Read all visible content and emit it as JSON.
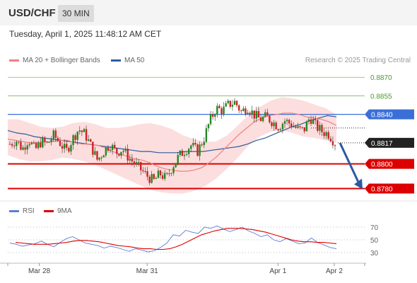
{
  "header": {
    "symbol": "USD/CHF",
    "timeframe": "30 MIN"
  },
  "timestamp": "Tuesday, April 1, 2025 11:48:12 AM CET",
  "legend": {
    "ma20": {
      "label": "MA 20 + Bollinger Bands",
      "color": "#f08080"
    },
    "ma50": {
      "label": "MA 50",
      "color": "#2e5c9e"
    }
  },
  "credit": "Research © 2025 Trading Central",
  "rsi_legend": {
    "rsi": {
      "label": "RSI",
      "color": "#5b7fd6"
    },
    "ma9": {
      "label": "9MA",
      "color": "#dd0000"
    }
  },
  "chart_data": [
    {
      "type": "candlestick",
      "ylim": [
        0.8774,
        0.8877
      ],
      "x_ticks": [
        {
          "label": "Mar 28",
          "pos": 0.0882
        },
        {
          "label": "Mar 31",
          "pos": 0.3905
        },
        {
          "label": "Apr 1",
          "pos": 0.7572
        },
        {
          "label": "Apr 2",
          "pos": 0.9148
        }
      ],
      "last_price": {
        "value": 0.8817,
        "label": "0.8817"
      },
      "levels": [
        {
          "value": 0.887,
          "label": "0.8870",
          "kind": "target"
        },
        {
          "value": 0.8855,
          "label": "0.8855",
          "kind": "target"
        },
        {
          "value": 0.884,
          "label": "0.8840",
          "kind": "pivot"
        },
        {
          "value": 0.88,
          "label": "0.8800",
          "kind": "support"
        },
        {
          "value": 0.878,
          "label": "0.8780",
          "kind": "support"
        }
      ],
      "forecast": {
        "from": 0.8817,
        "to": 0.878
      },
      "colors": {
        "up": "#228822",
        "down": "#cc2222",
        "target": "#4a9a2a",
        "pivot": "#3a6fd8",
        "support": "#dd0000",
        "forecast": "#2b5aa0"
      },
      "close_path": [
        0.8816,
        0.8819,
        0.8812,
        0.882,
        0.8811,
        0.8818,
        0.8816,
        0.8823,
        0.8817,
        0.881,
        0.882,
        0.8828,
        0.8824,
        0.8814,
        0.8803,
        0.881,
        0.8816,
        0.8809,
        0.8812,
        0.8805,
        0.88,
        0.8795,
        0.879,
        0.8786,
        0.8792,
        0.8788,
        0.8798,
        0.8806,
        0.8811,
        0.8815,
        0.881,
        0.882,
        0.8835,
        0.8845,
        0.8843,
        0.8848,
        0.885,
        0.8842,
        0.8846,
        0.884,
        0.8836,
        0.8838,
        0.8834,
        0.883,
        0.8835,
        0.8832,
        0.8828,
        0.8827,
        0.8838,
        0.883,
        0.8826,
        0.8824,
        0.8817
      ],
      "ma20": [
        0.882,
        0.8819,
        0.8818,
        0.8817,
        0.8817,
        0.8818,
        0.8818,
        0.8819,
        0.8819,
        0.8817,
        0.8816,
        0.8816,
        0.8815,
        0.8813,
        0.881,
        0.8808,
        0.8806,
        0.8804,
        0.8803,
        0.8801,
        0.8798,
        0.8796,
        0.8795,
        0.8794,
        0.8794,
        0.8795,
        0.8797,
        0.8801,
        0.8806,
        0.8812,
        0.8818,
        0.8824,
        0.8829,
        0.8834,
        0.8837,
        0.8839,
        0.884,
        0.8841,
        0.8841,
        0.884,
        0.8838,
        0.8837,
        0.8836,
        0.8834,
        0.8831
      ],
      "ma50": [
        0.8827,
        0.8825,
        0.8824,
        0.8822,
        0.8821,
        0.882,
        0.8819,
        0.8818,
        0.8817,
        0.8816,
        0.8815,
        0.8814,
        0.8813,
        0.8812,
        0.8811,
        0.881,
        0.881,
        0.8809,
        0.8809,
        0.8809,
        0.881,
        0.881,
        0.881,
        0.8811,
        0.8812,
        0.8813,
        0.8814,
        0.8816,
        0.8819,
        0.8821,
        0.8824,
        0.8827,
        0.883,
        0.8832,
        0.8835,
        0.8837,
        0.8839,
        0.8838
      ],
      "bb_upper": [
        0.8836,
        0.8836,
        0.8833,
        0.883,
        0.8829,
        0.883,
        0.8833,
        0.8834,
        0.8832,
        0.8829,
        0.8829,
        0.883,
        0.8832,
        0.8833,
        0.8831,
        0.8828,
        0.8823,
        0.882,
        0.8818,
        0.8818,
        0.8823,
        0.8831,
        0.884,
        0.8846,
        0.8851,
        0.8854,
        0.8853,
        0.8851,
        0.8848,
        0.8845,
        0.884
      ],
      "bb_lower": [
        0.8807,
        0.8804,
        0.8802,
        0.8802,
        0.8803,
        0.8805,
        0.8804,
        0.8802,
        0.8799,
        0.8795,
        0.8791,
        0.8787,
        0.8783,
        0.8779,
        0.8777,
        0.8776,
        0.8776,
        0.8778,
        0.8782,
        0.8788,
        0.8796,
        0.8805,
        0.8815,
        0.8822,
        0.8826,
        0.8827,
        0.8825,
        0.8822,
        0.8821,
        0.8819,
        0.8817
      ]
    },
    {
      "type": "line",
      "name": "RSI",
      "ylim": [
        20,
        80
      ],
      "y_ticks": [
        70,
        50,
        30
      ],
      "rsi": [
        45,
        43,
        40,
        42,
        44,
        48,
        43,
        39,
        46,
        52,
        55,
        50,
        45,
        43,
        41,
        37,
        40,
        38,
        35,
        32,
        36,
        34,
        31,
        33,
        38,
        45,
        58,
        56,
        65,
        62,
        60,
        70,
        68,
        72,
        67,
        63,
        66,
        70,
        64,
        60,
        55,
        58,
        50,
        47,
        52,
        48,
        44,
        45,
        53,
        46,
        42,
        38,
        36
      ],
      "ma9": [
        46,
        45,
        44,
        43,
        43,
        43,
        44,
        45,
        46,
        48,
        49,
        49,
        48,
        47,
        45,
        43,
        41,
        40,
        39,
        37,
        36,
        36,
        35,
        35,
        36,
        39,
        43,
        48,
        53,
        58,
        61,
        64,
        66,
        68,
        68,
        68,
        67,
        66,
        64,
        62,
        59,
        56,
        53,
        50,
        48,
        47,
        47,
        46,
        46,
        45,
        44
      ]
    }
  ]
}
